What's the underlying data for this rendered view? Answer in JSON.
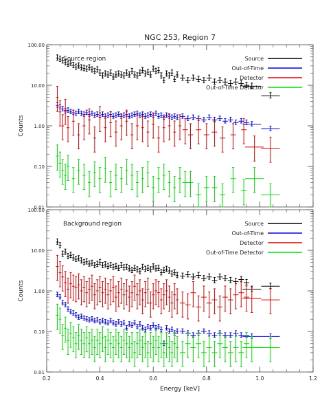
{
  "chart_data": {
    "type": "scatter",
    "title": "NGC 253, Region 7",
    "xlabel": "Energy [keV]",
    "ylabel": "Counts",
    "xlim": [
      0.2,
      1.2
    ],
    "ylim": [
      0.01,
      100
    ],
    "yscale": "log",
    "xticks": [
      "0.2",
      "0.4",
      "0.6",
      "0.8",
      "1.0",
      "1.2"
    ],
    "yticks": [
      "0.01",
      "0.10",
      "1.00",
      "10.00",
      "100.00"
    ],
    "legend_position": "top-right",
    "panels": [
      {
        "panel_label": "Source region",
        "series": [
          {
            "name": "Source",
            "color": "#000000",
            "x": [
              0.24,
              0.25,
              0.26,
              0.27,
              0.28,
              0.29,
              0.3,
              0.31,
              0.32,
              0.33,
              0.34,
              0.35,
              0.36,
              0.37,
              0.38,
              0.39,
              0.4,
              0.41,
              0.42,
              0.43,
              0.44,
              0.45,
              0.46,
              0.47,
              0.48,
              0.49,
              0.5,
              0.51,
              0.52,
              0.53,
              0.54,
              0.55,
              0.56,
              0.57,
              0.58,
              0.59,
              0.6,
              0.61,
              0.62,
              0.63,
              0.64,
              0.65,
              0.66,
              0.67,
              0.68,
              0.69,
              0.71,
              0.73,
              0.75,
              0.77,
              0.79,
              0.81,
              0.83,
              0.85,
              0.87,
              0.89,
              0.91,
              0.93,
              0.95,
              0.97,
              1.04
            ],
            "y": [
              47,
              44,
              40,
              36,
              33,
              35,
              31,
              28,
              30,
              27,
              26,
              25,
              27,
              24,
              22,
              24,
              20,
              17,
              19,
              18,
              20,
              16,
              18,
              19,
              18,
              17,
              20,
              18,
              22,
              18,
              17,
              20,
              23,
              19,
              21,
              18,
              25,
              22,
              23,
              17,
              13,
              19,
              17,
              20,
              14,
              18,
              15,
              13,
              15,
              14,
              13,
              15,
              12,
              13,
              12,
              11,
              12,
              11,
              10,
              9.5,
              5.5
            ]
          },
          {
            "name": "Out-of-Time",
            "color": "#0000dd",
            "x": [
              0.24,
              0.25,
              0.26,
              0.27,
              0.28,
              0.29,
              0.3,
              0.31,
              0.32,
              0.33,
              0.34,
              0.35,
              0.36,
              0.37,
              0.38,
              0.39,
              0.4,
              0.41,
              0.42,
              0.43,
              0.44,
              0.45,
              0.46,
              0.47,
              0.48,
              0.49,
              0.5,
              0.51,
              0.52,
              0.53,
              0.54,
              0.55,
              0.56,
              0.57,
              0.58,
              0.59,
              0.6,
              0.61,
              0.62,
              0.63,
              0.64,
              0.65,
              0.66,
              0.67,
              0.68,
              0.69,
              0.71,
              0.73,
              0.75,
              0.77,
              0.79,
              0.81,
              0.83,
              0.85,
              0.87,
              0.89,
              0.91,
              0.93,
              0.95,
              0.97,
              1.04
            ],
            "y": [
              3.2,
              2.9,
              2.6,
              2.3,
              2.4,
              2.2,
              2.1,
              2.0,
              2.2,
              2.0,
              1.9,
              2.1,
              1.9,
              2.0,
              1.8,
              1.9,
              1.8,
              1.9,
              1.7,
              1.8,
              1.9,
              1.7,
              1.8,
              1.9,
              1.7,
              1.8,
              1.9,
              1.7,
              1.8,
              1.9,
              2.0,
              1.8,
              1.9,
              1.7,
              1.8,
              1.9,
              1.8,
              2.0,
              1.7,
              1.8,
              1.6,
              1.8,
              1.7,
              1.6,
              1.7,
              1.6,
              1.7,
              1.5,
              1.6,
              1.5,
              1.4,
              1.6,
              1.4,
              1.5,
              1.3,
              1.4,
              1.2,
              1.3,
              1.2,
              1.1,
              0.85
            ]
          },
          {
            "name": "Detector",
            "color": "#dd0000",
            "x": [
              0.24,
              0.25,
              0.26,
              0.27,
              0.28,
              0.3,
              0.32,
              0.34,
              0.36,
              0.38,
              0.4,
              0.42,
              0.44,
              0.46,
              0.48,
              0.5,
              0.52,
              0.54,
              0.56,
              0.58,
              0.6,
              0.62,
              0.64,
              0.66,
              0.68,
              0.7,
              0.72,
              0.74,
              0.77,
              0.8,
              0.83,
              0.86,
              0.9,
              0.94,
              0.98,
              1.04
            ],
            "y": [
              5.0,
              2.2,
              1.0,
              2.4,
              0.9,
              1.3,
              0.6,
              1.0,
              1.4,
              0.5,
              1.6,
              0.9,
              1.2,
              0.7,
              1.0,
              1.3,
              0.6,
              1.0,
              0.9,
              0.7,
              1.1,
              0.5,
              0.9,
              1.0,
              0.7,
              1.0,
              0.8,
              0.6,
              0.8,
              0.6,
              0.7,
              0.5,
              0.6,
              0.8,
              0.3,
              0.28
            ]
          },
          {
            "name": "Out-of-Time Detector",
            "color": "#00dd00",
            "x": [
              0.24,
              0.25,
              0.26,
              0.27,
              0.28,
              0.3,
              0.32,
              0.34,
              0.36,
              0.38,
              0.4,
              0.42,
              0.44,
              0.46,
              0.48,
              0.5,
              0.52,
              0.54,
              0.56,
              0.58,
              0.6,
              0.62,
              0.64,
              0.66,
              0.68,
              0.7,
              0.72,
              0.74,
              0.77,
              0.8,
              0.83,
              0.86,
              0.9,
              0.94,
              0.98,
              1.04
            ],
            "y": [
              0.18,
              0.12,
              0.08,
              0.06,
              0.1,
              0.05,
              0.08,
              0.06,
              0.04,
              0.07,
              0.05,
              0.09,
              0.04,
              0.06,
              0.05,
              0.08,
              0.06,
              0.04,
              0.05,
              0.07,
              0.03,
              0.05,
              0.06,
              0.04,
              0.03,
              0.05,
              0.04,
              0.04,
              0.02,
              0.03,
              0.03,
              0.02,
              0.05,
              0.025,
              0.05,
              0.02
            ]
          }
        ]
      },
      {
        "panel_label": "Background region",
        "series": [
          {
            "name": "Source",
            "color": "#000000",
            "x": [
              0.24,
              0.25,
              0.26,
              0.27,
              0.28,
              0.29,
              0.3,
              0.31,
              0.32,
              0.33,
              0.34,
              0.35,
              0.36,
              0.37,
              0.38,
              0.39,
              0.4,
              0.41,
              0.42,
              0.43,
              0.44,
              0.45,
              0.46,
              0.47,
              0.48,
              0.49,
              0.5,
              0.51,
              0.52,
              0.53,
              0.54,
              0.55,
              0.56,
              0.57,
              0.58,
              0.59,
              0.6,
              0.61,
              0.62,
              0.63,
              0.64,
              0.65,
              0.66,
              0.67,
              0.68,
              0.69,
              0.71,
              0.73,
              0.75,
              0.77,
              0.79,
              0.81,
              0.83,
              0.85,
              0.87,
              0.89,
              0.91,
              0.93,
              0.95,
              0.97,
              1.04
            ],
            "y": [
              16,
              13,
              8,
              9,
              7,
              7.5,
              6.5,
              6,
              6.2,
              5.5,
              5,
              5.2,
              4.6,
              4.8,
              4.2,
              4.5,
              5,
              4.2,
              4.4,
              4,
              4.2,
              3.8,
              4,
              3.6,
              4.2,
              3.7,
              3.8,
              3.5,
              3.2,
              3.6,
              3.3,
              3,
              3.8,
              3.4,
              3.6,
              3.3,
              3.9,
              3.5,
              3.6,
              2.8,
              3.2,
              3.4,
              3.1,
              2.6,
              2.8,
              2.4,
              2.3,
              2.5,
              2.2,
              2.4,
              2.0,
              2.2,
              1.8,
              2.2,
              2.0,
              1.8,
              1.7,
              1.9,
              1.6,
              1.1,
              1.3
            ]
          },
          {
            "name": "Out-of-Time",
            "color": "#0000dd",
            "x": [
              0.24,
              0.25,
              0.26,
              0.27,
              0.28,
              0.29,
              0.3,
              0.31,
              0.32,
              0.33,
              0.34,
              0.35,
              0.36,
              0.37,
              0.38,
              0.39,
              0.4,
              0.41,
              0.42,
              0.43,
              0.44,
              0.45,
              0.46,
              0.47,
              0.48,
              0.49,
              0.5,
              0.51,
              0.52,
              0.53,
              0.54,
              0.55,
              0.56,
              0.57,
              0.58,
              0.59,
              0.6,
              0.61,
              0.62,
              0.63,
              0.64,
              0.65,
              0.66,
              0.67,
              0.68,
              0.69,
              0.71,
              0.73,
              0.75,
              0.77,
              0.79,
              0.81,
              0.83,
              0.85,
              0.87,
              0.89,
              0.91,
              0.93,
              0.95,
              0.97,
              1.04
            ],
            "y": [
              0.8,
              0.7,
              0.5,
              0.45,
              0.35,
              0.3,
              0.28,
              0.25,
              0.22,
              0.23,
              0.21,
              0.2,
              0.19,
              0.2,
              0.18,
              0.19,
              0.17,
              0.18,
              0.17,
              0.16,
              0.18,
              0.16,
              0.15,
              0.17,
              0.15,
              0.16,
              0.12,
              0.15,
              0.14,
              0.16,
              0.13,
              0.15,
              0.12,
              0.11,
              0.13,
              0.12,
              0.14,
              0.12,
              0.13,
              0.11,
              0.05,
              0.12,
              0.1,
              0.11,
              0.09,
              0.1,
              0.1,
              0.09,
              0.08,
              0.09,
              0.1,
              0.09,
              0.08,
              0.09,
              0.08,
              0.08,
              0.09,
              0.08,
              0.08,
              0.075,
              0.075
            ]
          },
          {
            "name": "Detector",
            "color": "#dd0000",
            "x": [
              0.24,
              0.25,
              0.26,
              0.27,
              0.28,
              0.29,
              0.3,
              0.31,
              0.32,
              0.33,
              0.34,
              0.35,
              0.36,
              0.37,
              0.38,
              0.39,
              0.4,
              0.41,
              0.42,
              0.43,
              0.44,
              0.45,
              0.46,
              0.47,
              0.48,
              0.49,
              0.5,
              0.51,
              0.52,
              0.53,
              0.54,
              0.55,
              0.56,
              0.57,
              0.58,
              0.59,
              0.6,
              0.61,
              0.62,
              0.63,
              0.64,
              0.65,
              0.66,
              0.67,
              0.68,
              0.69,
              0.71,
              0.73,
              0.75,
              0.77,
              0.79,
              0.81,
              0.83,
              0.85,
              0.87,
              0.89,
              0.91,
              0.93,
              0.95,
              0.97,
              1.04
            ],
            "y": [
              4.0,
              2.8,
              2.2,
              1.6,
              1.1,
              1.5,
              1.3,
              1.2,
              1.4,
              1.0,
              1.2,
              0.9,
              1.1,
              1.3,
              0.8,
              1.0,
              1.2,
              0.9,
              1.1,
              0.8,
              1.0,
              1.2,
              0.7,
              0.9,
              1.1,
              0.8,
              1.0,
              0.7,
              0.9,
              1.3,
              0.8,
              1.0,
              0.6,
              0.9,
              1.1,
              0.5,
              0.8,
              1.0,
              0.9,
              0.6,
              0.8,
              1.0,
              0.7,
              0.5,
              0.8,
              0.6,
              0.5,
              0.45,
              0.9,
              0.4,
              0.7,
              0.5,
              0.6,
              0.4,
              0.7,
              0.6,
              0.8,
              0.9,
              0.7,
              0.65,
              0.6
            ]
          },
          {
            "name": "Out-of-Time Detector",
            "color": "#00dd00",
            "x": [
              0.24,
              0.25,
              0.26,
              0.27,
              0.28,
              0.29,
              0.3,
              0.31,
              0.32,
              0.33,
              0.34,
              0.35,
              0.36,
              0.37,
              0.38,
              0.39,
              0.4,
              0.41,
              0.42,
              0.43,
              0.44,
              0.45,
              0.46,
              0.47,
              0.48,
              0.49,
              0.5,
              0.51,
              0.52,
              0.53,
              0.54,
              0.55,
              0.56,
              0.57,
              0.58,
              0.59,
              0.6,
              0.61,
              0.62,
              0.63,
              0.64,
              0.65,
              0.66,
              0.67,
              0.68,
              0.69,
              0.71,
              0.73,
              0.75,
              0.77,
              0.79,
              0.81,
              0.83,
              0.85,
              0.87,
              0.89,
              0.91,
              0.93,
              0.95,
              0.97,
              1.04
            ],
            "y": [
              0.25,
              0.2,
              0.08,
              0.12,
              0.06,
              0.09,
              0.07,
              0.05,
              0.08,
              0.06,
              0.05,
              0.07,
              0.05,
              0.06,
              0.04,
              0.06,
              0.05,
              0.07,
              0.04,
              0.06,
              0.05,
              0.04,
              0.06,
              0.05,
              0.04,
              0.06,
              0.05,
              0.04,
              0.05,
              0.03,
              0.05,
              0.06,
              0.04,
              0.05,
              0.03,
              0.05,
              0.04,
              0.06,
              0.04,
              0.05,
              0.03,
              0.05,
              0.04,
              0.03,
              0.05,
              0.04,
              0.03,
              0.05,
              0.04,
              0.05,
              0.03,
              0.04,
              0.03,
              0.05,
              0.04,
              0.03,
              0.04,
              0.03,
              0.05,
              0.04,
              0.04
            ]
          }
        ]
      }
    ]
  }
}
